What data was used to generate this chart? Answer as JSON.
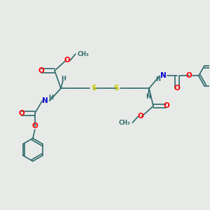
{
  "bg_color": "#e8eae8",
  "bond_color": "#2d6b6b",
  "atom_colors": {
    "O": "#ff0000",
    "N": "#0000cc",
    "S": "#cccc00",
    "H": "#2d6b6b"
  },
  "lw": 1.2,
  "fs": 7.5,
  "fs_s": 6.0
}
